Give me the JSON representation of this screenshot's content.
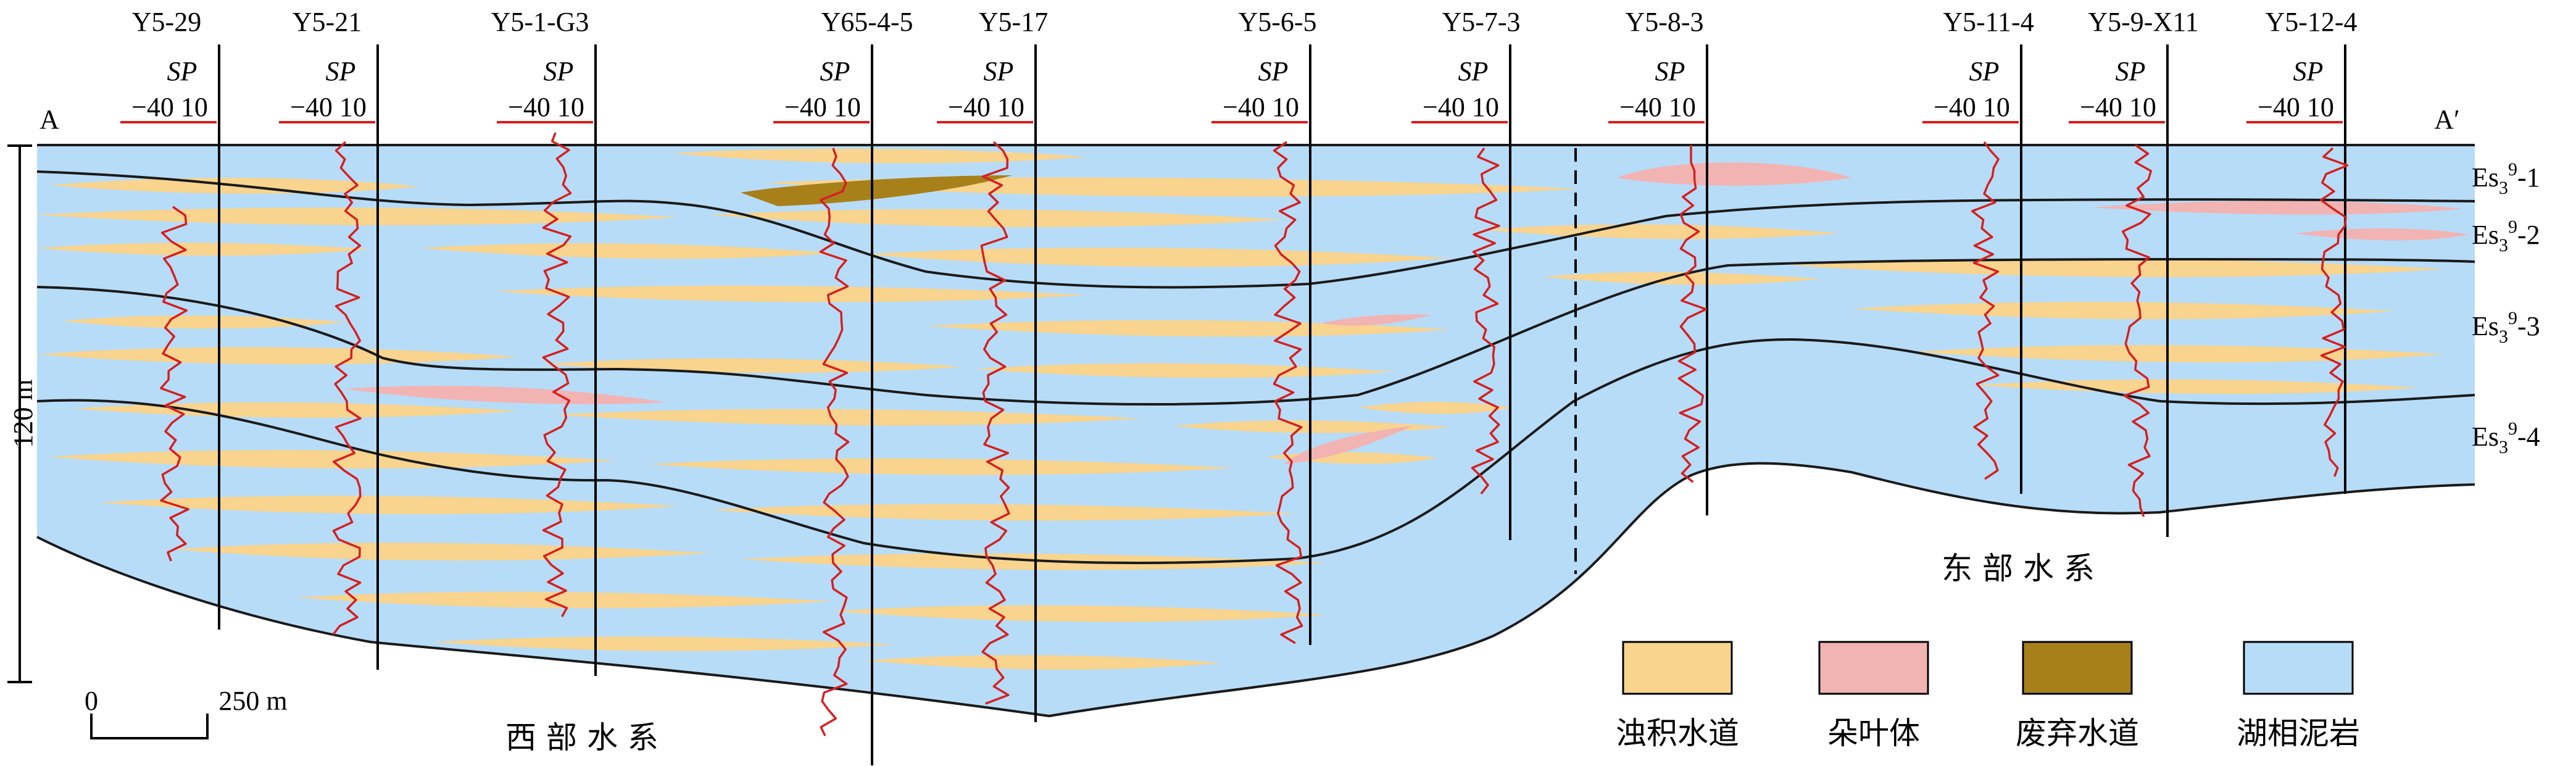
{
  "section": {
    "start_label": "A",
    "end_label": "A′"
  },
  "sp_log": {
    "curve_label": "SP",
    "scale_text": "−40 10"
  },
  "wells": [
    {
      "name": "Y5-29"
    },
    {
      "name": "Y5-21"
    },
    {
      "name": "Y5-1-G3"
    },
    {
      "name": "Y65-4-5"
    },
    {
      "name": "Y5-17"
    },
    {
      "name": "Y5-6-5"
    },
    {
      "name": "Y5-7-3"
    },
    {
      "name": "Y5-8-3"
    },
    {
      "name": "Y5-11-4"
    },
    {
      "name": "Y5-9-X11"
    },
    {
      "name": "Y5-12-4"
    }
  ],
  "layers": [
    {
      "base": "Es",
      "sub": "3",
      "sup": "9",
      "suffix": "-1"
    },
    {
      "base": "Es",
      "sub": "3",
      "sup": "9",
      "suffix": "-2"
    },
    {
      "base": "Es",
      "sub": "3",
      "sup": "9",
      "suffix": "-3"
    },
    {
      "base": "Es",
      "sub": "3",
      "sup": "9",
      "suffix": "-4"
    }
  ],
  "vertical_scale": {
    "label": "120 m"
  },
  "horizontal_scale": {
    "zero": "0",
    "value": "250 m"
  },
  "systems": {
    "west": "西 部 水 系",
    "east": "东 部 水 系"
  },
  "legend": [
    {
      "key": "turbidite",
      "label": "浊积水道",
      "color": "#f8d48e"
    },
    {
      "key": "lobe",
      "label": "朵叶体",
      "color": "#f2b3b3"
    },
    {
      "key": "abandoned",
      "label": "废弃水道",
      "color": "#a8801a"
    },
    {
      "key": "mudstone",
      "label": "湖相泥岩",
      "color": "#b7dcf8"
    }
  ],
  "colors": {
    "sp_curve": "#d42020",
    "boundary": "#1a1a1a",
    "well_line": "#000000"
  }
}
